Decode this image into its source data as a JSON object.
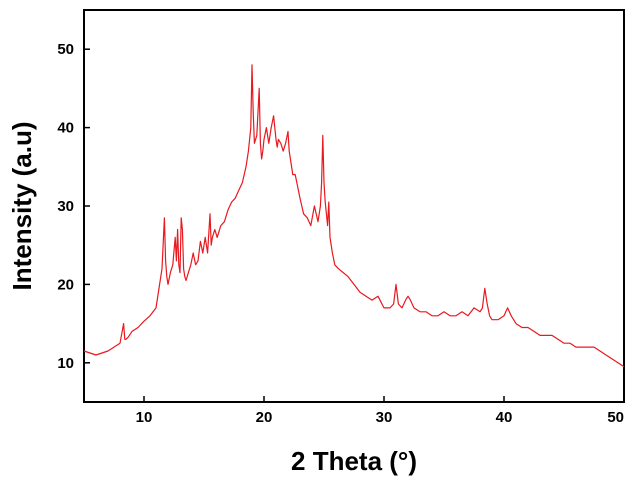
{
  "chart_data": {
    "type": "line",
    "title": "",
    "xlabel": "2 Theta (°)",
    "ylabel": "Intensity (a.u)",
    "xlim": [
      5,
      50
    ],
    "ylim": [
      5,
      55
    ],
    "x_ticks": [
      10,
      20,
      30,
      40,
      50
    ],
    "y_ticks": [
      10,
      20,
      30,
      40,
      50
    ],
    "grid": false,
    "legend": "none",
    "series": [
      {
        "color": "#e8191f",
        "x": [
          5.0,
          6.0,
          7.0,
          7.5,
          8.0,
          8.3,
          8.4,
          8.5,
          8.7,
          9.0,
          9.5,
          10.0,
          10.5,
          11.0,
          11.3,
          11.5,
          11.7,
          11.8,
          11.9,
          12.0,
          12.2,
          12.4,
          12.6,
          12.7,
          12.8,
          12.9,
          13.0,
          13.1,
          13.2,
          13.3,
          13.4,
          13.5,
          13.7,
          13.9,
          14.1,
          14.3,
          14.5,
          14.7,
          14.9,
          15.1,
          15.3,
          15.5,
          15.6,
          15.7,
          15.9,
          16.1,
          16.4,
          16.7,
          17.0,
          17.3,
          17.6,
          17.9,
          18.2,
          18.5,
          18.7,
          18.9,
          19.0,
          19.1,
          19.2,
          19.4,
          19.6,
          19.7,
          19.8,
          19.9,
          20.0,
          20.2,
          20.4,
          20.6,
          20.8,
          21.0,
          21.1,
          21.2,
          21.4,
          21.6,
          21.8,
          22.0,
          22.1,
          22.2,
          22.4,
          22.6,
          22.8,
          23.0,
          23.3,
          23.6,
          23.9,
          24.2,
          24.5,
          24.7,
          24.8,
          24.9,
          25.0,
          25.1,
          25.2,
          25.3,
          25.4,
          25.5,
          25.7,
          25.9,
          26.2,
          26.6,
          27.0,
          27.5,
          28.0,
          28.5,
          29.0,
          29.5,
          30.0,
          30.5,
          30.8,
          31.0,
          31.2,
          31.5,
          31.8,
          32.0,
          32.2,
          32.5,
          33.0,
          33.5,
          34.0,
          34.5,
          35.0,
          35.5,
          36.0,
          36.5,
          37.0,
          37.5,
          38.0,
          38.2,
          38.4,
          38.6,
          38.8,
          39.0,
          39.5,
          40.0,
          40.3,
          40.6,
          41.0,
          41.5,
          42.0,
          42.5,
          43.0,
          43.5,
          44.0,
          44.5,
          45.0,
          45.5,
          46.0,
          46.5,
          47.0,
          47.5,
          48.0,
          48.5,
          49.0,
          49.5,
          50.0
        ],
        "y": [
          11.5,
          11.0,
          11.5,
          12.0,
          12.5,
          15.0,
          13.0,
          13.0,
          13.3,
          14.0,
          14.5,
          15.3,
          16.0,
          17.0,
          20.0,
          22.0,
          28.5,
          23.0,
          21.0,
          20.0,
          21.5,
          22.5,
          26.0,
          23.0,
          27.0,
          22.5,
          21.5,
          28.5,
          27.0,
          22.0,
          21.0,
          20.5,
          21.5,
          22.5,
          24.0,
          22.5,
          23.0,
          25.5,
          24.0,
          26.0,
          24.0,
          29.0,
          25.0,
          26.0,
          27.0,
          26.0,
          27.5,
          28.0,
          29.5,
          30.5,
          31.0,
          32.0,
          33.0,
          35.0,
          37.0,
          40.0,
          48.0,
          42.0,
          38.0,
          39.0,
          45.0,
          38.0,
          36.0,
          37.0,
          38.5,
          40.0,
          38.0,
          40.0,
          41.5,
          38.5,
          37.5,
          38.5,
          38.0,
          37.0,
          38.0,
          39.5,
          37.0,
          36.0,
          34.0,
          34.0,
          32.5,
          31.0,
          29.0,
          28.5,
          27.5,
          30.0,
          28.0,
          30.0,
          33.0,
          39.0,
          33.0,
          30.5,
          29.0,
          27.5,
          30.5,
          26.0,
          24.0,
          22.5,
          22.0,
          21.5,
          21.0,
          20.0,
          19.0,
          18.5,
          18.0,
          18.5,
          17.0,
          17.0,
          17.5,
          20.0,
          17.5,
          17.0,
          18.0,
          18.5,
          18.0,
          17.0,
          16.5,
          16.5,
          16.0,
          16.0,
          16.5,
          16.0,
          16.0,
          16.5,
          16.0,
          17.0,
          16.5,
          17.0,
          19.5,
          17.5,
          16.0,
          15.5,
          15.5,
          16.0,
          17.0,
          16.0,
          15.0,
          14.5,
          14.5,
          14.0,
          13.5,
          13.5,
          13.5,
          13.0,
          12.5,
          12.5,
          12.0,
          12.0,
          12.0,
          12.0,
          11.5,
          11.0,
          10.5,
          10.0,
          9.5
        ]
      }
    ]
  }
}
